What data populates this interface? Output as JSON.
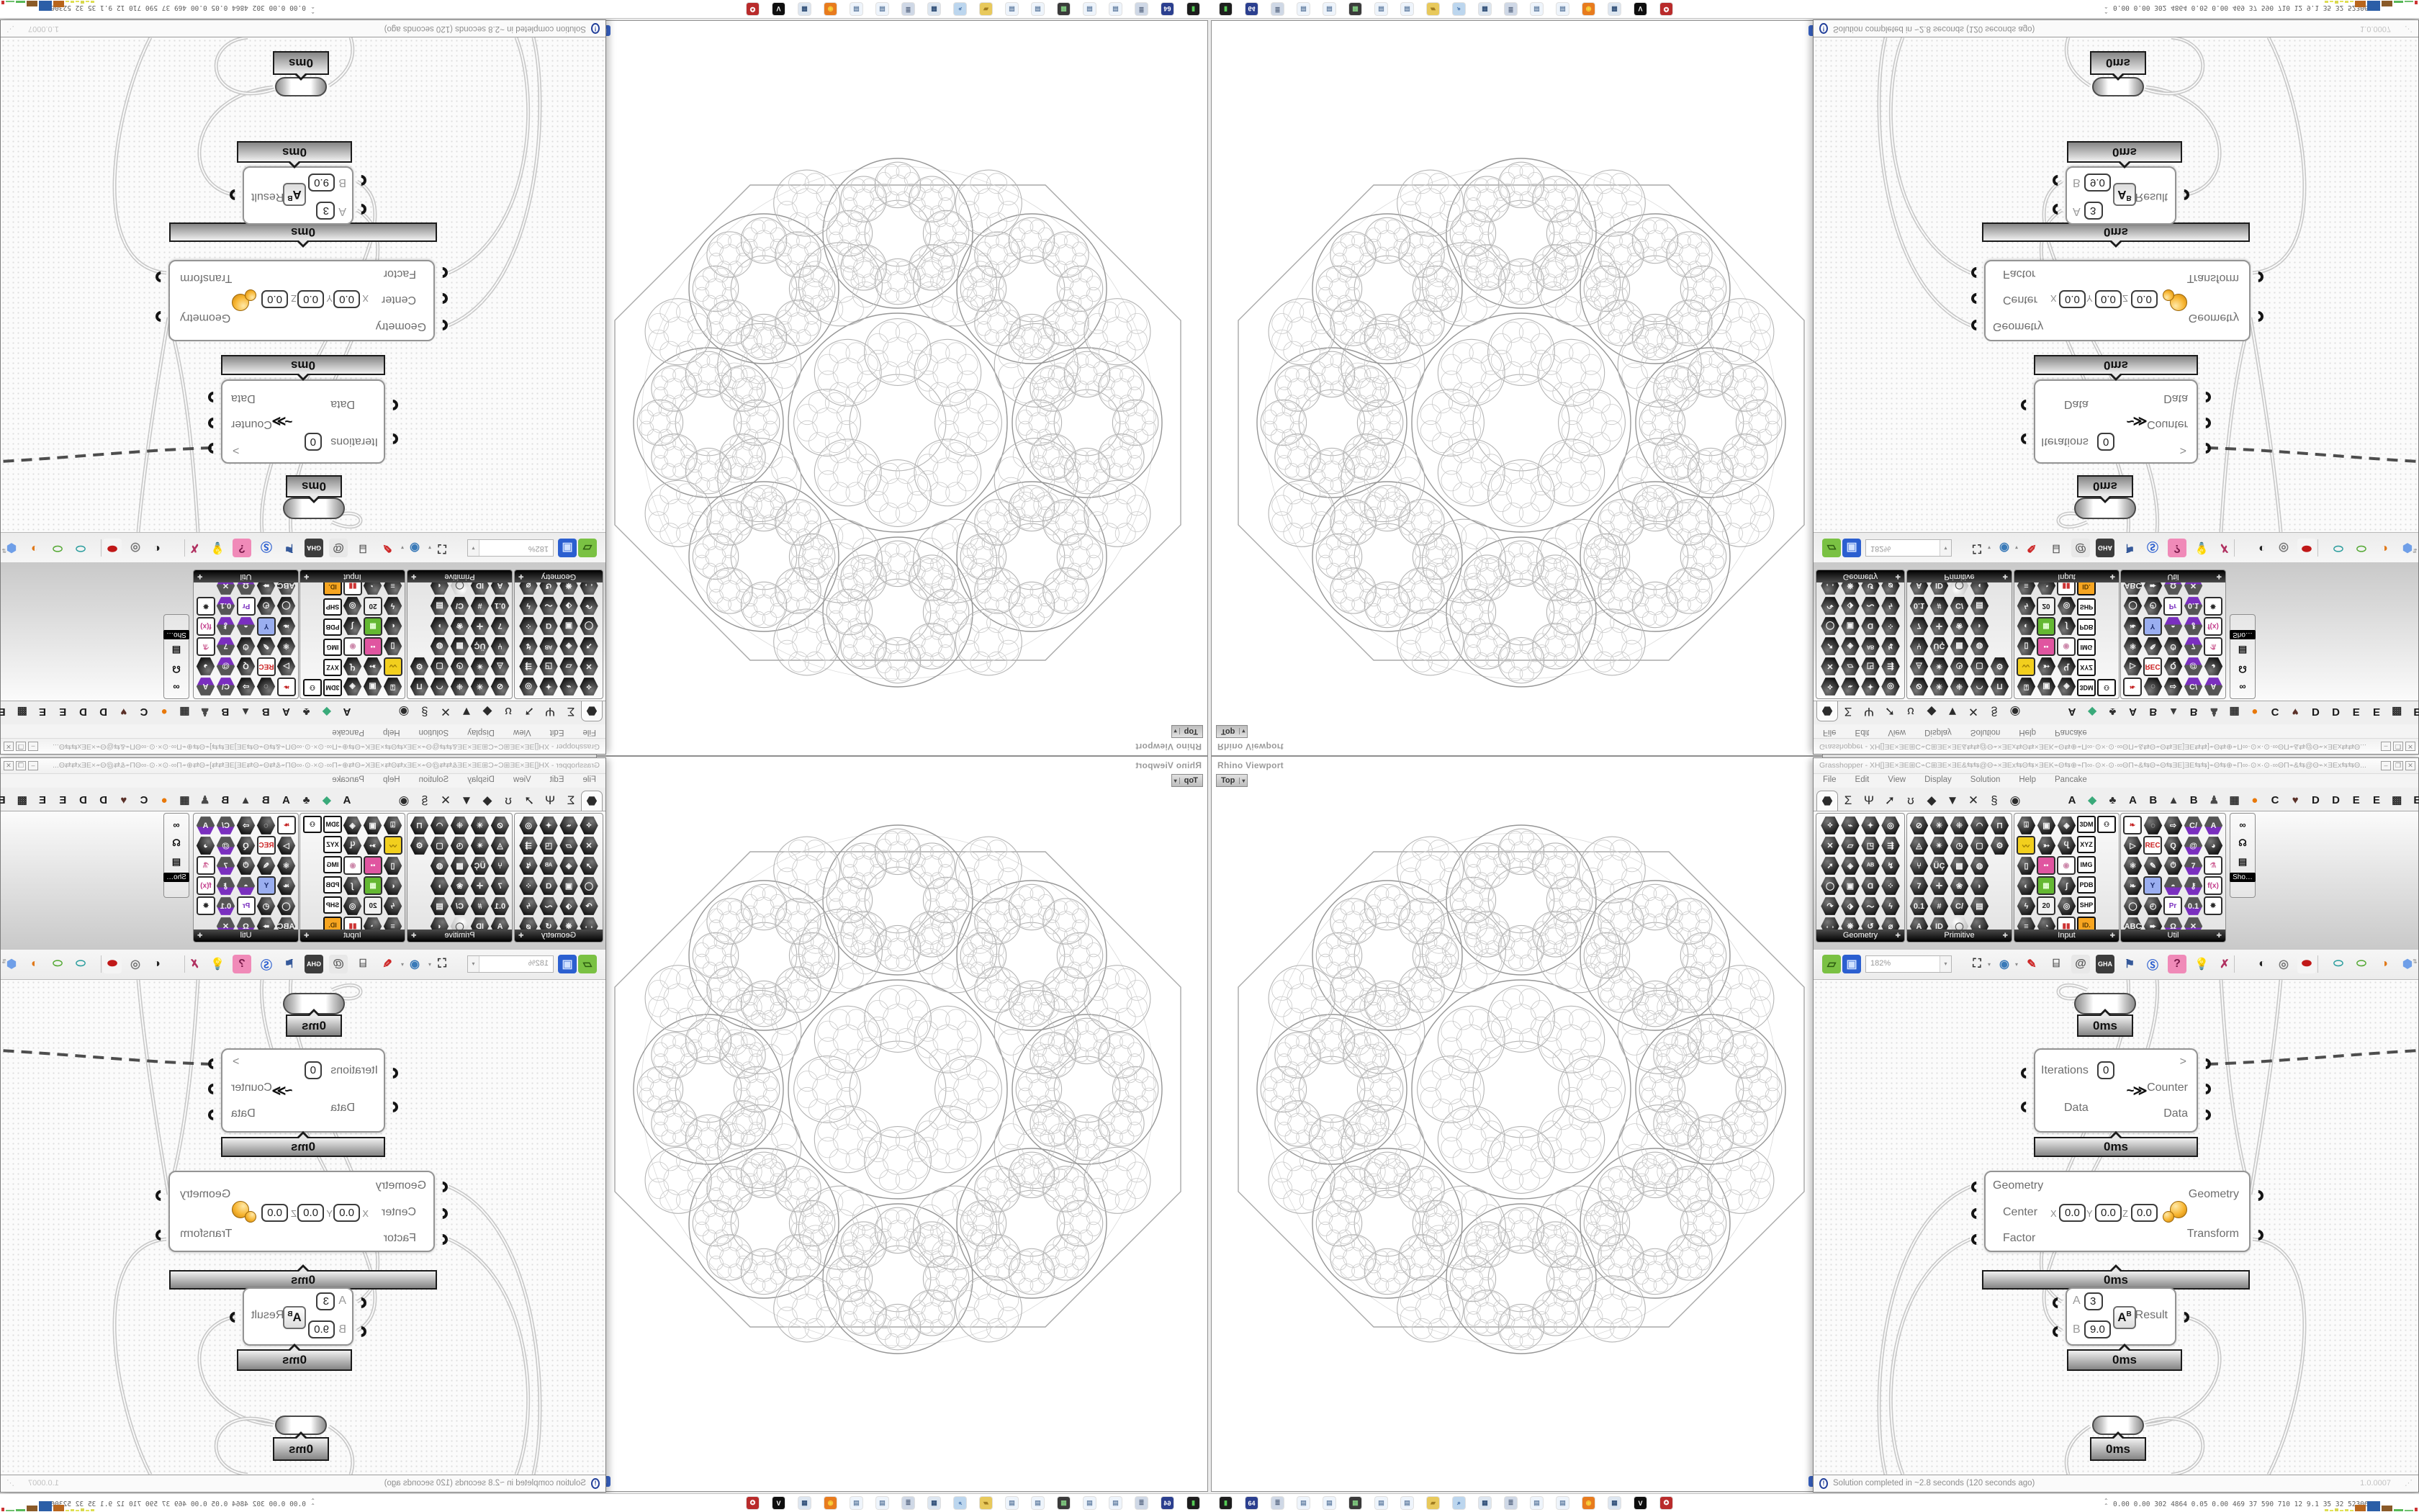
{
  "rhino": {
    "caption": "Rhino Viewport",
    "viewport_label": "Top",
    "dropdown_glyph": "▾",
    "grip_glyph": "⁝"
  },
  "gh": {
    "title": "Grasshopper - XH[]ƎE×ƎE⊞C⌁C⊞ƎE×ƎE&⇆⇆@Θ⌁×ƎEx⇆Θ⇆×ƎEK⌁Θ⇆⊕⌁Π∞·⊙×·⊙·∞ΘΠ⌁&⇆Θ⌁Θ⇆ƎE]ƎE⇆⇆]⌁Θ⇆⊕⌁Π∞·⊙×·⊙·∞ΘΠ⌁&⇆@Θ⌁×ƎEx⇆⇆Θ...",
    "window_buttons": {
      "min": "–",
      "max": "❒",
      "close": "✕"
    },
    "menu": [
      "File",
      "Edit",
      "View",
      "Display",
      "Solution",
      "Help",
      "Pancake"
    ],
    "category_tabs": [
      {
        "glyph": "⬣",
        "name": "params",
        "selected": true
      },
      {
        "glyph": "Σ",
        "name": "maths"
      },
      {
        "glyph": "Ψ",
        "name": "sets"
      },
      {
        "glyph": "➚",
        "name": "vector"
      },
      {
        "glyph": "ʊ",
        "name": "curve"
      },
      {
        "glyph": "◆",
        "name": "surface"
      },
      {
        "glyph": "▼",
        "name": "mesh"
      },
      {
        "glyph": "✕",
        "name": "intersect"
      },
      {
        "glyph": "§",
        "name": "transform"
      },
      {
        "glyph": "◉",
        "name": "display"
      }
    ],
    "plugin_tabs": [
      {
        "glyph": "A",
        "color": "#1a1a1a"
      },
      {
        "glyph": "◆",
        "color": "#3aaa7a"
      },
      {
        "glyph": "♣",
        "color": "#2d2d2d"
      },
      {
        "glyph": "A",
        "color": "#1a1a1a"
      },
      {
        "glyph": "B",
        "color": "#1a1a1a"
      },
      {
        "glyph": "▲",
        "color": "#3b3b3b"
      },
      {
        "glyph": "B",
        "color": "#1a1a1a"
      },
      {
        "glyph": "♟",
        "color": "#4a4a4a"
      },
      {
        "glyph": "▦",
        "color": "#2d2d2d"
      },
      {
        "glyph": "●",
        "color": "#e8780a"
      },
      {
        "glyph": "C",
        "color": "#1a1a1a"
      },
      {
        "glyph": "♥",
        "color": "#5a3028"
      },
      {
        "glyph": "D",
        "color": "#1a1a1a"
      },
      {
        "glyph": "D",
        "color": "#1a1a1a"
      },
      {
        "glyph": "E",
        "color": "#1a1a1a"
      },
      {
        "glyph": "E",
        "color": "#1a1a1a"
      },
      {
        "glyph": "▩",
        "color": "#2d2d2d"
      },
      {
        "glyph": "E",
        "color": "#1a1a1a"
      }
    ],
    "palettes": [
      {
        "name": "Geometry",
        "cols": 4,
        "rows": 6,
        "glyphs": [
          "⟡",
          "⌁",
          "✦",
          "◎",
          "✕",
          "▱",
          "◳",
          "⇶",
          "➚",
          "◈",
          "ᴬᴮ",
          "↯",
          "◯",
          "▣",
          "Ɑ",
          "⁘",
          "↷",
          "⬗",
          "〜",
          "ϟ",
          "᪾",
          "❋",
          "↺",
          "⌀"
        ],
        "specials": {}
      },
      {
        "name": "Primitive",
        "cols": 5,
        "rows": 6,
        "glyphs": [
          "⊘",
          "✳",
          "⁜",
          "◠",
          "⊓",
          "◬",
          "✴",
          "◷",
          "▢",
          "⚙",
          "⑂",
          "ÜÇ",
          "▩",
          "◍",
          "",
          "7",
          "✛",
          "❀",
          "◗",
          "",
          "0.1",
          "#",
          "C/",
          "▤",
          "",
          "A",
          "ID",
          "◔",
          "◖",
          ""
        ],
        "specials": {
          "5,2": {
            "t": "hex-light",
            "g": "◯"
          }
        }
      },
      {
        "name": "Input",
        "cols": 5,
        "rows": 6,
        "glyphs": [
          "⍗",
          "▣",
          "◈",
          "",
          "⚇",
          "〰",
          "➳",
          "Ⴁ",
          "",
          "",
          "▯",
          "▭",
          "◉",
          "",
          "",
          "◐",
          "▦",
          "∫",
          "",
          "",
          "ϟ",
          "20",
          "◎",
          "",
          "",
          "≡",
          "◔",
          "▥",
          "",
          ""
        ],
        "specials": {
          "0,3": {
            "t": "chip",
            "g": "3DM"
          },
          "1,3": {
            "t": "chip",
            "g": "XYZ"
          },
          "2,3": {
            "t": "chip",
            "g": "IMG"
          },
          "3,3": {
            "t": "chip",
            "g": "PDB"
          },
          "4,3": {
            "t": "chip",
            "g": "SHP"
          },
          "0,4": {
            "t": "chip",
            "g": "⚇"
          },
          "1,0": {
            "t": "sq",
            "g": "〰",
            "bg": "#f2cf1d",
            "fg": "#8a6a00"
          },
          "2,1": {
            "t": "sq",
            "g": "▪▪",
            "bg": "#e055a0",
            "fg": "#ffffff"
          },
          "2,2": {
            "t": "sq",
            "g": "◉",
            "bg": "#ffffff",
            "fg": "#c8a"
          },
          "3,1": {
            "t": "sq",
            "g": "▦",
            "bg": "#64b832",
            "fg": "#e6ffd6"
          },
          "4,1": {
            "t": "sq",
            "g": "20",
            "bg": "#f2f2f2",
            "fg": "#222222"
          },
          "5,2": {
            "t": "sq",
            "g": "▮▮",
            "bg": "#ffffff",
            "fg": "#cc3333"
          },
          "5,3": {
            "t": "chip-o",
            "g": "ID.",
            "bg": "#f7a520",
            "fg": "#5a3a00"
          }
        }
      },
      {
        "name": "Util",
        "cols": 5,
        "rows": 6,
        "glyphs": [
          "",
          "◌",
          "⇨",
          "C/",
          "A",
          "▷",
          "",
          "Q",
          "@",
          "◕",
          "⚛",
          "✎",
          "⏱",
          "7",
          "",
          "❧",
          "Y",
          "◓",
          "⚷",
          "",
          "◯",
          "◴",
          "Pr",
          "0.1",
          "✸",
          "ABC",
          "➨",
          "Ω",
          "✕",
          ""
        ],
        "specials": {
          "0,0": {
            "t": "sq",
            "g": "❧",
            "bg": "#ffffff",
            "fg": "#c42222"
          },
          "1,1": {
            "t": "sq",
            "g": "REC",
            "bg": "#ffffff",
            "fg": "#cc2222"
          },
          "2,4": {
            "t": "sq",
            "g": "⚗",
            "bg": "#ffffff",
            "fg": "#d06a9a"
          },
          "3,1": {
            "t": "sq",
            "g": "Y",
            "bg": "#9aaef0",
            "fg": "#1a2a6a"
          },
          "3,4": {
            "t": "sq",
            "g": "f(x)",
            "bg": "#ffffff",
            "fg": "#c23a8a"
          },
          "4,2": {
            "t": "sq",
            "g": "Pr",
            "bg": "#ffffff",
            "fg": "#7a2fbf"
          },
          "4,4": {
            "t": "sq",
            "g": "✸",
            "bg": "#ffffff",
            "fg": "#2a2a2a"
          },
          "0,3": {
            "t": "hex-p",
            "g": "C/"
          },
          "0,4": {
            "t": "hex-p",
            "g": "A"
          },
          "1,3": {
            "t": "hex-p",
            "g": "@"
          },
          "2,3": {
            "t": "hex-p",
            "g": "7"
          },
          "3,2": {
            "t": "hex-p",
            "g": "◓"
          },
          "3,3": {
            "t": "hex-p",
            "g": "⚷"
          },
          "4,3": {
            "t": "hex-p",
            "g": "0.1"
          },
          "5,2": {
            "t": "hex-p",
            "g": "Ω"
          },
          "5,3": {
            "t": "hex-p",
            "g": "✕"
          }
        }
      }
    ],
    "mini_palette": {
      "label": "Sho…",
      "icons": [
        "∞",
        "☊",
        "▤"
      ]
    },
    "toolbar": {
      "zoom_value": "182%",
      "items": [
        {
          "name": "open-folder-icon",
          "glyph": "▱",
          "bg": "#7ac143",
          "fg": "#2c5a10"
        },
        {
          "name": "save-floppy-icon",
          "glyph": "▣",
          "bg": "#2b5fd0",
          "fg": "#cfe0ff"
        },
        {
          "name": "zoom-extents-icon",
          "glyph": "⛶",
          "bg": "",
          "fg": "#333333",
          "arrow": true
        },
        {
          "name": "preview-eye-icon",
          "glyph": "◉",
          "bg": "",
          "fg": "#3a7ab8",
          "arrow": true
        },
        {
          "name": "sketch-pen-icon",
          "glyph": "✎",
          "bg": "",
          "fg": "#cc2222"
        },
        {
          "name": "bake-jar-icon",
          "glyph": "⌸",
          "bg": "",
          "fg": "#4a4a4a"
        },
        {
          "name": "cluster-icon",
          "glyph": "@",
          "bg": "#e8e8e8",
          "fg": "#555555"
        },
        {
          "name": "gha-cloud-icon",
          "glyph": "GHA",
          "bg": "#3c3c3c",
          "fg": "#ffffff"
        },
        {
          "name": "export-flag-icon",
          "glyph": "⚑",
          "bg": "",
          "fg": "#35599a"
        },
        {
          "name": "find-icon",
          "glyph": "Ⓢ",
          "bg": "",
          "fg": "#2b5fd0"
        },
        {
          "name": "help-box-icon",
          "glyph": "?",
          "bg": "#f08ab8",
          "fg": "#7a1a4a"
        },
        {
          "name": "bulb-icon",
          "glyph": "💡",
          "bg": "",
          "fg": "#c8b030"
        },
        {
          "name": "dna-icon",
          "glyph": "✗",
          "bg": "",
          "fg": "#b03060"
        },
        {
          "name": "shade-dark-cylinder-icon",
          "glyph": "◐",
          "bg": "",
          "fg": "#222222"
        },
        {
          "name": "wire-cylinder-icon",
          "glyph": "◎",
          "bg": "",
          "fg": "#777777"
        },
        {
          "name": "red-cylinder-icon",
          "glyph": "⬬",
          "bg": "#f4f4f4",
          "fg": "#c01818"
        },
        {
          "name": "pin-teal-icon",
          "glyph": "⬭",
          "bg": "",
          "fg": "#2a9d9d"
        },
        {
          "name": "pin-green-icon",
          "glyph": "⬭",
          "bg": "",
          "fg": "#53a832"
        },
        {
          "name": "sphere-orange-icon",
          "glyph": "◑",
          "bg": "",
          "fg": "#e07818"
        },
        {
          "name": "sphere-blue-icon",
          "glyph": "⬢",
          "bg": "",
          "fg": "#6f9fe8",
          "arrow": true
        }
      ],
      "scroll_glyph": "⇅"
    },
    "nodes": {
      "capsule_top": {
        "time": "0ms"
      },
      "loop_start": {
        "input_label": "Iterations",
        "input_value": "0",
        "data_label": "Data",
        "out_trigger": ">",
        "out_counter": "Counter",
        "out_data": "Data",
        "icon_glyph": "~≫",
        "time": "0ms"
      },
      "scale": {
        "inputs": [
          "Geometry",
          "Center",
          "Factor"
        ],
        "axes": [
          {
            "a": "X",
            "v": "0.0"
          },
          {
            "a": "Y",
            "v": "0.0"
          },
          {
            "a": "Z",
            "v": "0.0"
          }
        ],
        "outputs": [
          "Geometry",
          "Transform"
        ],
        "time": "0ms"
      },
      "power": {
        "a_label": "A",
        "a_value": "3",
        "b_label": "B",
        "b_value": "9.0",
        "result_label": "Result",
        "time": "0ms"
      },
      "capsule_bottom": {
        "time": "0ms"
      }
    },
    "status": {
      "text": "Solution completed in ~2.8 seconds (120 seconds ago)",
      "version": "1.0.0007",
      "grip": "⋰"
    }
  },
  "taskbar": {
    "caret": "⌃⌃",
    "stats": "0.00 0.00  302 4864 0.05 0.00  469   37   590  710   12   9.1   35   32  52306823",
    "icons": [
      {
        "name": "terminal-icon",
        "glyph": "▮",
        "bg": "#1d1d1d",
        "fg": "#55cc55"
      },
      {
        "name": "win64-floppy-icon",
        "glyph": "64",
        "bg": "#2b3f8f",
        "fg": "#ffffff"
      },
      {
        "name": "scroll-doc-icon",
        "glyph": "≣",
        "bg": "#cfd8e6",
        "fg": "#5a6a85"
      },
      {
        "name": "notepad-icon",
        "glyph": "▤",
        "bg": "#eef4fb",
        "fg": "#6b86a8"
      },
      {
        "name": "notepad-icon",
        "glyph": "▤",
        "bg": "#eef4fb",
        "fg": "#6b86a8"
      },
      {
        "name": "monitor-icon",
        "glyph": "▦",
        "bg": "#3a3a3a",
        "fg": "#7fc97f"
      },
      {
        "name": "notepad-icon",
        "glyph": "▤",
        "bg": "#eef4fb",
        "fg": "#6b86a8"
      },
      {
        "name": "notepad-icon",
        "glyph": "▤",
        "bg": "#eef4fb",
        "fg": "#6b86a8"
      },
      {
        "name": "folder-icon",
        "glyph": "▰",
        "bg": "#e8c95c",
        "fg": "#a07c20"
      },
      {
        "name": "search-computer-icon",
        "glyph": "⌕",
        "bg": "#bcd6ee",
        "fg": "#2f5f9e"
      },
      {
        "name": "calculator-icon",
        "glyph": "▦",
        "bg": "#dde6f0",
        "fg": "#33527a"
      },
      {
        "name": "scroll-doc-icon",
        "glyph": "≣",
        "bg": "#cfd8e6",
        "fg": "#5a6a85"
      },
      {
        "name": "notepad-icon",
        "glyph": "▤",
        "bg": "#eef4fb",
        "fg": "#6b86a8"
      },
      {
        "name": "notepad-icon",
        "glyph": "▤",
        "bg": "#eef4fb",
        "fg": "#6b86a8"
      },
      {
        "name": "firefox-icon",
        "glyph": "◉",
        "bg": "#e87b1e",
        "fg": "#f8d23c"
      },
      {
        "name": "calculator-icon",
        "glyph": "▦",
        "bg": "#dde6f0",
        "fg": "#33527a"
      },
      {
        "name": "wolf-icon",
        "glyph": "V",
        "bg": "#0e0e0e",
        "fg": "#ffffff"
      },
      {
        "name": "red-badge-icon",
        "glyph": "✪",
        "bg": "#b92b2b",
        "fg": "#ffffff"
      }
    ],
    "histogram": [
      {
        "h": 3,
        "w": 5,
        "c": "#dede52"
      },
      {
        "h": 2,
        "w": 5,
        "c": "#e4e45a"
      },
      {
        "h": 4,
        "w": 5,
        "c": "#d8d84e"
      },
      {
        "h": 2,
        "w": 5,
        "c": "#e4e45a"
      },
      {
        "h": 3,
        "w": 5,
        "c": "#dede52"
      },
      {
        "h": 2,
        "w": 5,
        "c": "#e4e45a"
      },
      {
        "h": 9,
        "w": 15,
        "c": "#b8651c"
      },
      {
        "h": 14,
        "w": 18,
        "c": "#2b5ea7"
      },
      {
        "h": 8,
        "w": 15,
        "c": "#8a5a28"
      },
      {
        "h": 3,
        "w": 13,
        "c": "#57b857"
      },
      {
        "h": 2,
        "w": 12,
        "c": "#6fc06f"
      },
      {
        "h": 5,
        "w": 4,
        "c": "#cc3434"
      }
    ]
  }
}
